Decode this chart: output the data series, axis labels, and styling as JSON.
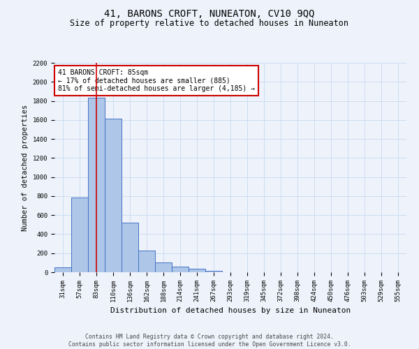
{
  "title": "41, BARONS CROFT, NUNEATON, CV10 9QQ",
  "subtitle": "Size of property relative to detached houses in Nuneaton",
  "xlabel": "Distribution of detached houses by size in Nuneaton",
  "ylabel": "Number of detached properties",
  "categories": [
    "31sqm",
    "57sqm",
    "83sqm",
    "110sqm",
    "136sqm",
    "162sqm",
    "188sqm",
    "214sqm",
    "241sqm",
    "267sqm",
    "293sqm",
    "319sqm",
    "345sqm",
    "372sqm",
    "398sqm",
    "424sqm",
    "450sqm",
    "476sqm",
    "503sqm",
    "529sqm",
    "555sqm"
  ],
  "values": [
    50,
    785,
    1830,
    1615,
    520,
    230,
    105,
    60,
    35,
    18,
    0,
    0,
    0,
    0,
    0,
    0,
    0,
    0,
    0,
    0,
    0
  ],
  "bar_color": "#aec6e8",
  "bar_edge_color": "#4472c4",
  "grid_color": "#ccdcf0",
  "background_color": "#eef3fb",
  "vline_x_index": 2,
  "vline_color": "#cc0000",
  "annotation_text": "41 BARONS CROFT: 85sqm\n← 17% of detached houses are smaller (885)\n81% of semi-detached houses are larger (4,185) →",
  "annotation_box_color": "#ffffff",
  "annotation_box_edge_color": "#cc0000",
  "ylim": [
    0,
    2200
  ],
  "yticks": [
    0,
    200,
    400,
    600,
    800,
    1000,
    1200,
    1400,
    1600,
    1800,
    2000,
    2200
  ],
  "footnote": "Contains HM Land Registry data © Crown copyright and database right 2024.\nContains public sector information licensed under the Open Government Licence v3.0.",
  "title_fontsize": 10,
  "subtitle_fontsize": 8.5,
  "xlabel_fontsize": 8,
  "ylabel_fontsize": 7.5,
  "tick_fontsize": 6.5,
  "annotation_fontsize": 7,
  "footnote_fontsize": 5.8
}
